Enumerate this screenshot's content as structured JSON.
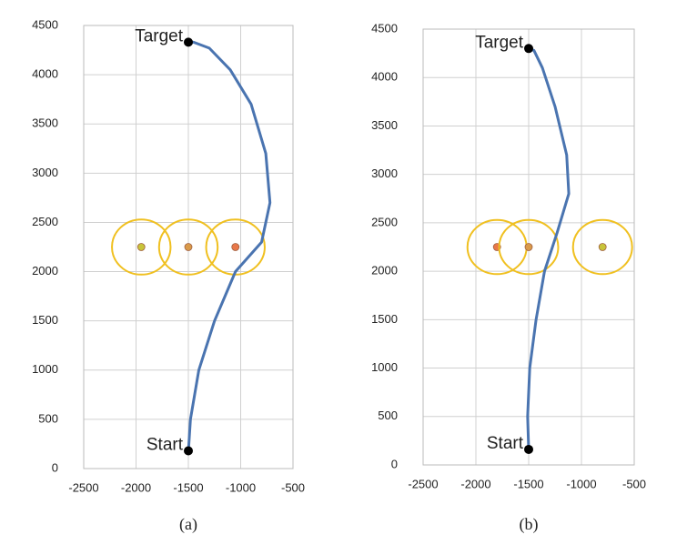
{
  "chart_data": [
    {
      "type": "trajectory",
      "caption": "(a)",
      "xlim": [
        -2500,
        -500
      ],
      "ylim": [
        0,
        4500
      ],
      "xticks": [
        -2500,
        -2000,
        -1500,
        -1000,
        -500
      ],
      "yticks": [
        0,
        500,
        1000,
        1500,
        2000,
        2500,
        3000,
        3500,
        4000,
        4500
      ],
      "grid": true,
      "trajectory": {
        "color": "#4a74b0",
        "x": [
          -1500,
          -1480,
          -1400,
          -1250,
          -1050,
          -800,
          -720,
          -760,
          -900,
          -1100,
          -1300,
          -1450,
          -1500
        ],
        "y": [
          170,
          500,
          1000,
          1500,
          2000,
          2300,
          2700,
          3200,
          3700,
          4050,
          4270,
          4330,
          4330
        ]
      },
      "obstacles": {
        "x": [
          -1950,
          -1500,
          -1050
        ],
        "y": [
          2250,
          2250,
          2250
        ],
        "radius": 280,
        "ring_color": "#f0c020",
        "colors": [
          "#c8c43a",
          "#d99a4a",
          "#e8784a"
        ]
      },
      "annotations": [
        {
          "text": "Target",
          "x": -1500,
          "y": 4330
        },
        {
          "text": "Start",
          "x": -1500,
          "y": 180
        }
      ]
    },
    {
      "type": "trajectory",
      "caption": "(b)",
      "xlim": [
        -2500,
        -500
      ],
      "ylim": [
        0,
        4500
      ],
      "xticks": [
        -2500,
        -2000,
        -1500,
        -1000,
        -500
      ],
      "yticks": [
        0,
        500,
        1000,
        1500,
        2000,
        2500,
        3000,
        3500,
        4000,
        4500
      ],
      "grid": true,
      "trajectory": {
        "color": "#4a74b0",
        "x": [
          -1500,
          -1510,
          -1490,
          -1430,
          -1350,
          -1230,
          -1120,
          -1140,
          -1250,
          -1370,
          -1450,
          -1500
        ],
        "y": [
          160,
          500,
          1000,
          1500,
          2000,
          2400,
          2800,
          3200,
          3700,
          4100,
          4280,
          4300
        ]
      },
      "obstacles": {
        "x": [
          -1800,
          -1500,
          -800
        ],
        "y": [
          2250,
          2250,
          2250
        ],
        "radius": 280,
        "ring_color": "#f0c020",
        "colors": [
          "#e8784a",
          "#d99a4a",
          "#c8c43a"
        ]
      },
      "annotations": [
        {
          "text": "Target",
          "x": -1500,
          "y": 4300
        },
        {
          "text": "Start",
          "x": -1500,
          "y": 160
        }
      ]
    }
  ]
}
